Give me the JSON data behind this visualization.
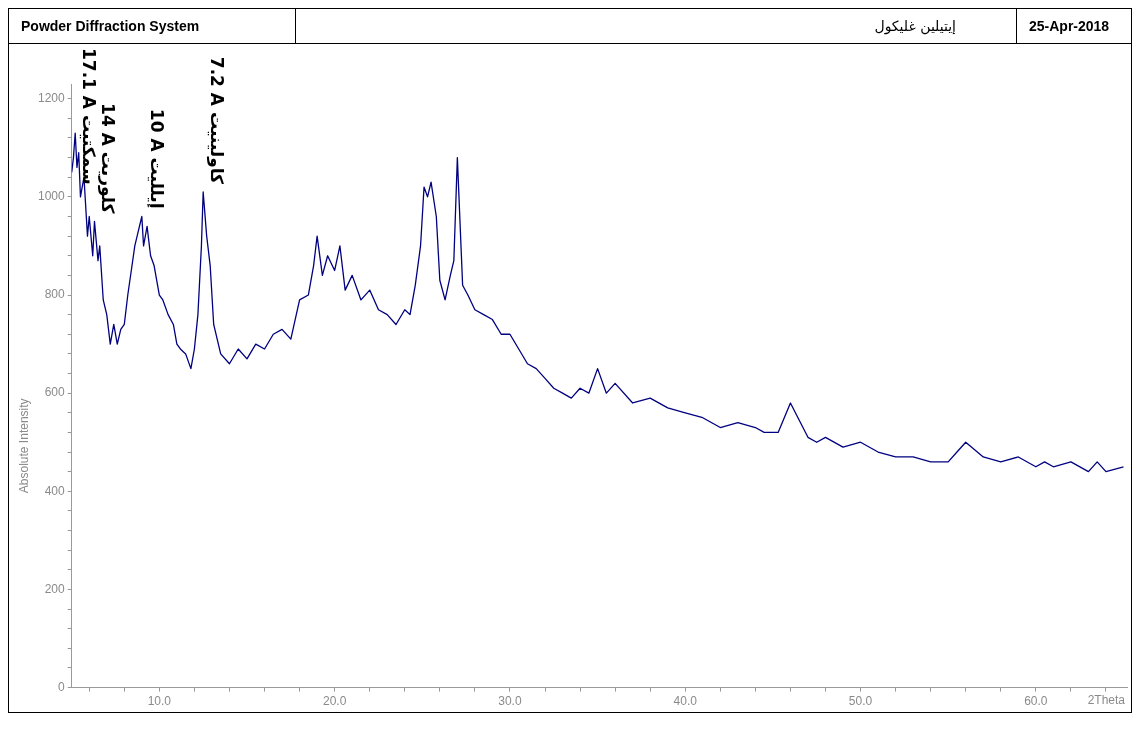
{
  "chart_data": {
    "type": "line",
    "title": "إيتيلين غليكول",
    "xlabel": "2Theta",
    "ylabel": "Absolute Intensity",
    "annotations": [
      "Powder Diffraction System",
      "25-Apr-2018",
      {
        "text": "17.1 A سمكتيت",
        "x": 5.2,
        "y": 1130
      },
      {
        "text": "14 A كلوريت",
        "x": 6.3,
        "y": 950
      },
      {
        "text": "10 A إيلليت",
        "x": 9.1,
        "y": 960
      },
      {
        "text": "7.2 A كاولينيت",
        "x": 12.5,
        "y": 1010
      }
    ],
    "x": [
      5.0,
      5.1,
      5.2,
      5.3,
      5.4,
      5.5,
      5.7,
      5.9,
      6.0,
      6.2,
      6.3,
      6.5,
      6.6,
      6.8,
      7.0,
      7.2,
      7.4,
      7.6,
      7.8,
      8.0,
      8.2,
      8.4,
      8.6,
      8.8,
      9.0,
      9.1,
      9.3,
      9.5,
      9.7,
      10.0,
      10.2,
      10.5,
      10.8,
      11.0,
      11.2,
      11.5,
      11.8,
      12.0,
      12.2,
      12.4,
      12.5,
      12.7,
      12.9,
      13.1,
      13.5,
      14.0,
      14.5,
      15.0,
      15.5,
      16.0,
      16.5,
      17.0,
      17.5,
      18.0,
      18.5,
      18.8,
      19.0,
      19.3,
      19.6,
      20.0,
      20.3,
      20.6,
      21.0,
      21.5,
      22.0,
      22.5,
      23.0,
      23.5,
      24.0,
      24.3,
      24.6,
      24.9,
      25.1,
      25.3,
      25.5,
      25.8,
      26.0,
      26.3,
      26.6,
      26.8,
      27.0,
      27.3,
      27.6,
      28.0,
      28.5,
      29.0,
      29.5,
      30.0,
      30.5,
      31.0,
      31.5,
      32.0,
      32.5,
      33.0,
      33.5,
      34.0,
      34.5,
      35.0,
      35.5,
      36.0,
      37.0,
      38.0,
      39.0,
      40.0,
      41.0,
      42.0,
      43.0,
      44.0,
      44.5,
      45.3,
      46.0,
      47.0,
      47.5,
      48.0,
      49.0,
      50.0,
      51.0,
      52.0,
      53.0,
      54.0,
      55.0,
      55.5,
      56.0,
      57.0,
      58.0,
      59.0,
      60.0,
      60.5,
      61.0,
      62.0,
      63.0,
      63.5,
      64.0,
      65.0
    ],
    "series": [
      {
        "color": "#000080",
        "values": [
          1050,
          1080,
          1130,
          1060,
          1090,
          1000,
          1040,
          920,
          960,
          880,
          950,
          870,
          900,
          790,
          760,
          700,
          740,
          700,
          730,
          740,
          800,
          850,
          900,
          930,
          960,
          900,
          940,
          880,
          860,
          800,
          790,
          760,
          740,
          700,
          690,
          680,
          650,
          690,
          760,
          900,
          1010,
          920,
          860,
          740,
          680,
          660,
          690,
          670,
          700,
          690,
          720,
          730,
          710,
          790,
          800,
          860,
          920,
          840,
          880,
          850,
          900,
          810,
          840,
          790,
          810,
          770,
          760,
          740,
          770,
          760,
          820,
          900,
          1020,
          1000,
          1030,
          960,
          830,
          790,
          840,
          870,
          1080,
          820,
          800,
          770,
          760,
          750,
          720,
          720,
          690,
          660,
          650,
          630,
          610,
          600,
          590,
          610,
          600,
          650,
          600,
          620,
          580,
          590,
          570,
          560,
          550,
          530,
          540,
          530,
          520,
          520,
          580,
          510,
          500,
          510,
          490,
          500,
          480,
          470,
          470,
          460,
          460,
          480,
          500,
          470,
          460,
          470,
          450,
          460,
          450,
          460,
          440,
          460,
          440,
          450
        ]
      }
    ],
    "xlim": [
      5,
      65.2
    ],
    "ylim": [
      0,
      1230
    ],
    "xticks": [
      {
        "value": 6,
        "label": null
      },
      {
        "value": 8,
        "label": null
      },
      {
        "value": 10,
        "label": "10.0"
      },
      {
        "value": 12,
        "label": null
      },
      {
        "value": 14,
        "label": null
      },
      {
        "value": 16,
        "label": null
      },
      {
        "value": 18,
        "label": null
      },
      {
        "value": 20,
        "label": "20.0"
      },
      {
        "value": 22,
        "label": null
      },
      {
        "value": 24,
        "label": null
      },
      {
        "value": 26,
        "label": null
      },
      {
        "value": 28,
        "label": null
      },
      {
        "value": 30,
        "label": "30.0"
      },
      {
        "value": 32,
        "label": null
      },
      {
        "value": 34,
        "label": null
      },
      {
        "value": 36,
        "label": null
      },
      {
        "value": 38,
        "label": null
      },
      {
        "value": 40,
        "label": "40.0"
      },
      {
        "value": 42,
        "label": null
      },
      {
        "value": 44,
        "label": null
      },
      {
        "value": 46,
        "label": null
      },
      {
        "value": 48,
        "label": null
      },
      {
        "value": 50,
        "label": "50.0"
      },
      {
        "value": 52,
        "label": null
      },
      {
        "value": 54,
        "label": null
      },
      {
        "value": 56,
        "label": null
      },
      {
        "value": 58,
        "label": null
      },
      {
        "value": 60,
        "label": "60.0"
      },
      {
        "value": 62,
        "label": null
      },
      {
        "value": 64,
        "label": null
      }
    ],
    "yticks": [
      0,
      {
        "value": 40,
        "label": null
      },
      {
        "value": 80,
        "label": null
      },
      {
        "value": 120,
        "label": null
      },
      {
        "value": 160,
        "label": null
      },
      200,
      {
        "value": 240,
        "label": null
      },
      {
        "value": 280,
        "label": null
      },
      {
        "value": 320,
        "label": null
      },
      {
        "value": 360,
        "label": null
      },
      400,
      {
        "value": 440,
        "label": null
      },
      {
        "value": 480,
        "label": null
      },
      {
        "value": 520,
        "label": null
      },
      {
        "value": 560,
        "label": null
      },
      600,
      {
        "value": 640,
        "label": null
      },
      {
        "value": 680,
        "label": null
      },
      {
        "value": 720,
        "label": null
      },
      {
        "value": 760,
        "label": null
      },
      800,
      {
        "value": 840,
        "label": null
      },
      {
        "value": 880,
        "label": null
      },
      {
        "value": 920,
        "label": null
      },
      {
        "value": 960,
        "label": null
      },
      1000,
      {
        "value": 1040,
        "label": null
      },
      {
        "value": 1080,
        "label": null
      },
      {
        "value": 1120,
        "label": null
      },
      {
        "value": 1160,
        "label": null
      },
      1200
    ],
    "grid": false,
    "legend": false,
    "marker": "none",
    "line_style": "solid"
  }
}
